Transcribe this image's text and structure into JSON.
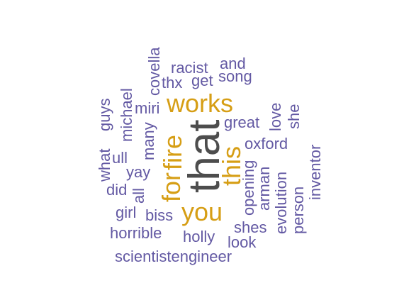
{
  "words": {
    "that": "that",
    "you": "you",
    "works": "works",
    "this": "this",
    "fire": "fire",
    "for": "for",
    "racist": "racist",
    "and": "and",
    "song": "song",
    "thx": "thx",
    "get": "get",
    "covella": "covella",
    "miri": "miri",
    "michael": "michael",
    "guys": "guys",
    "many": "many",
    "what": "what",
    "ull": "ull",
    "yay": "yay",
    "did": "did",
    "all": "all",
    "girl": "girl",
    "biss": "biss",
    "great": "great",
    "love": "love",
    "she": "she",
    "oxford": "oxford",
    "opening": "opening",
    "arman": "arman",
    "evolution": "evolution",
    "person": "person",
    "inventor": "inventor",
    "shes": "shes",
    "look": "look",
    "horrible": "horrible",
    "holly": "holly",
    "scientistengineer": "scientistengineer"
  },
  "colors": {
    "primary_words": "#6359a3",
    "emphasis_words": "#d69e15",
    "top_word": "#4d4d4d"
  }
}
